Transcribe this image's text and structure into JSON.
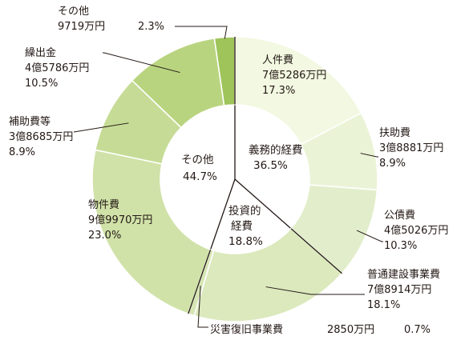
{
  "chart_data": {
    "type": "donut",
    "unit": "万円",
    "outer_ring": [
      {
        "name": "人件費",
        "amount": "7億5286万円",
        "percent": 17.3,
        "color": "#f2f8e1"
      },
      {
        "name": "扶助費",
        "amount": "3億8881万円",
        "percent": 8.9,
        "color": "#eaf3d6"
      },
      {
        "name": "公債費",
        "amount": "4億5026万円",
        "percent": 10.3,
        "color": "#e2eecb"
      },
      {
        "name": "普通建設事業費",
        "amount": "7億8914万円",
        "percent": 18.1,
        "color": "#dbe9bd"
      },
      {
        "name": "災害復旧事業費",
        "amount": "2850万円",
        "percent": 0.7,
        "color": "#d6e6b4"
      },
      {
        "name": "物件費",
        "amount": "9億9970万円",
        "percent": 23.0,
        "color": "#d0e2a8"
      },
      {
        "name": "補助費等",
        "amount": "3億8685万円",
        "percent": 8.9,
        "color": "#c6dc96"
      },
      {
        "name": "繰出金",
        "amount": "4億5786万円",
        "percent": 10.5,
        "color": "#b9d47f"
      },
      {
        "name": "その他",
        "amount": "9719万円",
        "percent": 2.3,
        "color": "#9ec45a"
      }
    ],
    "inner_groups": [
      {
        "name": "義務的経費",
        "percent": 36.5,
        "spans": [
          "人件費",
          "扶助費",
          "公債費"
        ]
      },
      {
        "name": "投資的経費",
        "percent": 18.8,
        "spans": [
          "普通建設事業費",
          "災害復旧事業費"
        ]
      },
      {
        "name": "その他",
        "percent": 44.7,
        "spans": [
          "物件費",
          "補助費等",
          "繰出金",
          "その他"
        ]
      }
    ]
  },
  "labels": {
    "jinken": {
      "name": "人件費",
      "amount": "7億5286万円",
      "pct": "17.3%"
    },
    "fujo": {
      "name": "扶助費",
      "amount": "3億8881万円",
      "pct": "8.9%"
    },
    "kousai": {
      "name": "公債費",
      "amount": "4億5026万円",
      "pct": "10.3%"
    },
    "futsu": {
      "name": "普通建設事業費",
      "amount": "7億8914万円",
      "pct": "18.1%"
    },
    "saigai": {
      "name": "災害復旧事業費",
      "amount": "2850万円",
      "pct": "0.7%"
    },
    "bukken": {
      "name": "物件費",
      "amount": "9億9970万円",
      "pct": "23.0%"
    },
    "hojo": {
      "name": "補助費等",
      "amount": "3億8685万円",
      "pct": "8.9%"
    },
    "kuridashi": {
      "name": "繰出金",
      "amount": "4億5786万円",
      "pct": "10.5%"
    },
    "sonota": {
      "name": "その他",
      "amount": "9719万円",
      "pct": "2.3%"
    }
  },
  "center": {
    "gimu": {
      "line1": "義務的経費",
      "pct": "36.5%"
    },
    "toushi": {
      "line1": "投資的",
      "line2": "経費",
      "pct": "18.8%"
    },
    "sonota": {
      "line1": "その他",
      "pct": "44.7%"
    }
  }
}
